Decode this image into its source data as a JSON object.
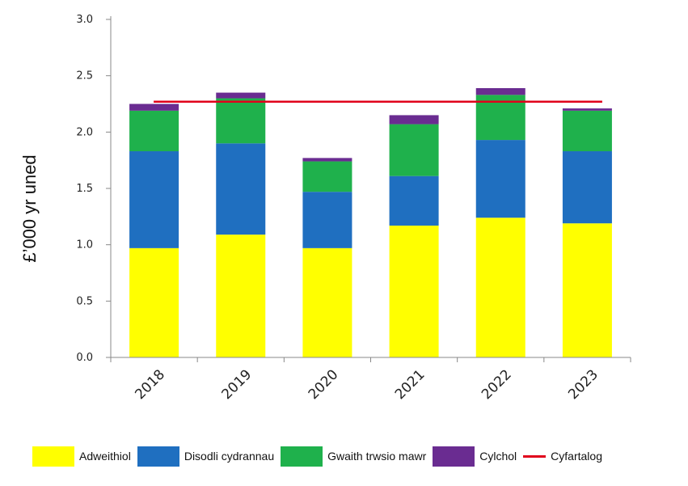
{
  "chart_data": {
    "type": "bar",
    "stacked": true,
    "categories": [
      "2018",
      "2019",
      "2020",
      "2021",
      "2022",
      "2023"
    ],
    "series": [
      {
        "name": "Adweithiol",
        "color": "#ffff00",
        "values": [
          0.97,
          1.09,
          0.97,
          1.17,
          1.24,
          1.19
        ]
      },
      {
        "name": "Disodli cydrannau",
        "color": "#1f6fc0",
        "values": [
          0.86,
          0.81,
          0.5,
          0.44,
          0.69,
          0.64
        ]
      },
      {
        "name": "Gwaith trwsio mawr",
        "color": "#1fb14c",
        "values": [
          0.36,
          0.4,
          0.27,
          0.46,
          0.4,
          0.36
        ]
      },
      {
        "name": "Cylchol",
        "color": "#6a2c91",
        "values": [
          0.06,
          0.05,
          0.03,
          0.08,
          0.06,
          0.02
        ]
      }
    ],
    "reference_line": {
      "name": "Cyfartalog",
      "color": "#e0001b",
      "value": 2.27
    },
    "ylabel": "£’000 yr uned",
    "xlabel": "",
    "ylim": [
      0,
      3.0
    ],
    "yticks": [
      "0.0",
      "0.5",
      "1.0",
      "1.5",
      "2.0",
      "2.5",
      "3.0"
    ],
    "grid": false,
    "legend_position": "bottom"
  }
}
